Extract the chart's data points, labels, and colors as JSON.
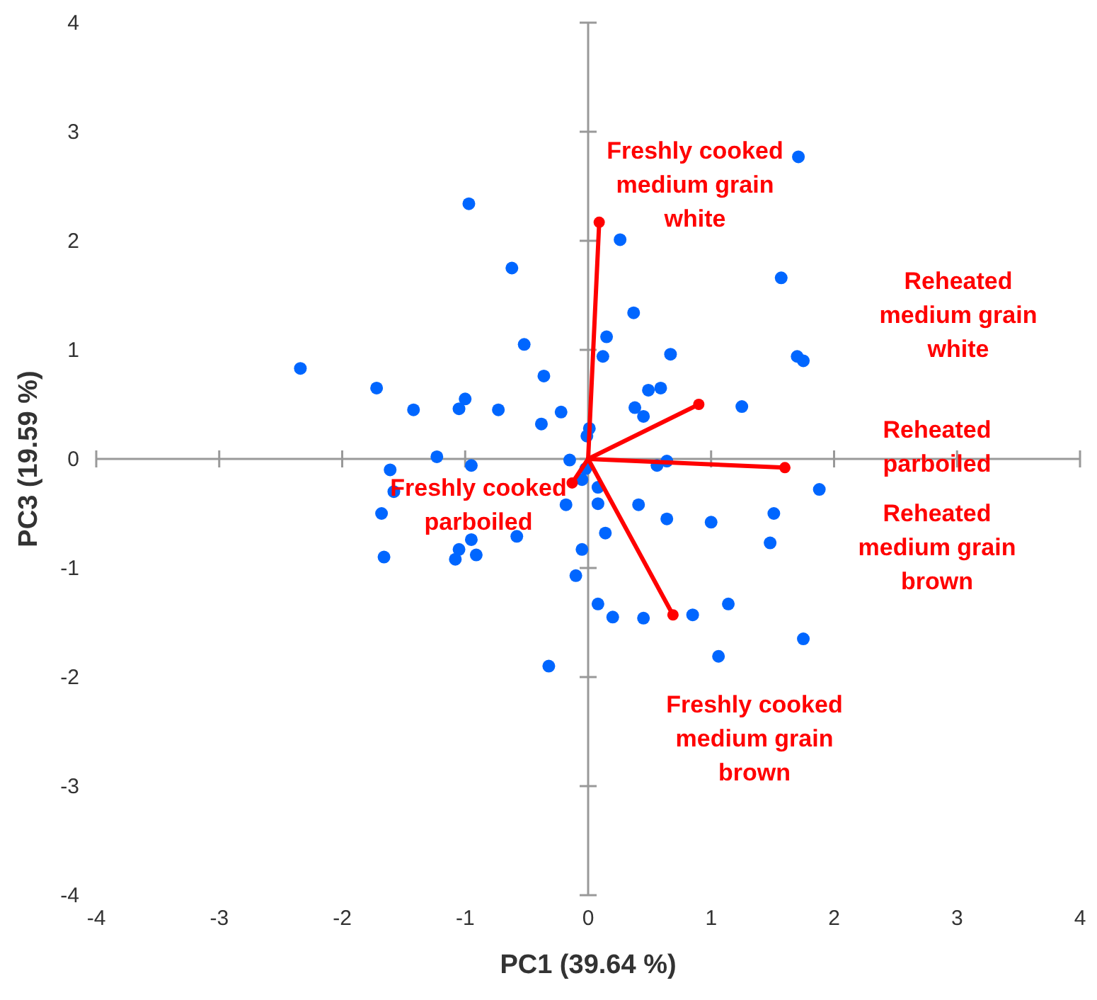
{
  "chart_data": {
    "type": "scatter",
    "xlabel": "PC1 (39.64 %)",
    "ylabel": "PC3 (19.59 %)",
    "xlim": [
      -4,
      4
    ],
    "ylim": [
      -4,
      4
    ],
    "xticks": [
      -4,
      -3,
      -2,
      -1,
      0,
      1,
      2,
      3,
      4
    ],
    "yticks": [
      -4,
      -3,
      -2,
      -1,
      0,
      1,
      2,
      3,
      4
    ],
    "marker": "circle",
    "series": [
      {
        "color": "#0066ff",
        "x": [
          -2.34,
          -1.72,
          -1.42,
          -0.97,
          -0.62,
          -0.52,
          -0.36,
          -1.0,
          -1.05,
          -0.73,
          -0.22,
          -0.38,
          0.01,
          -0.01,
          -1.23,
          -0.15,
          -1.61,
          -0.95,
          0.15,
          0.12,
          1.71,
          0.26,
          1.57,
          0.37,
          0.67,
          1.7,
          1.75,
          0.49,
          0.59,
          0.38,
          0.45,
          1.25,
          0.64,
          0.56,
          -1.58,
          -1.68,
          -1.66,
          -0.02,
          -0.05,
          -0.18,
          0.08,
          0.08,
          -0.58,
          -0.95,
          -1.05,
          -1.08,
          -0.91,
          -0.05,
          -0.1,
          0.08,
          -0.32,
          0.14,
          0.41,
          0.64,
          1.0,
          0.2,
          0.45,
          0.85,
          1.14,
          1.06,
          1.75,
          1.48,
          1.51,
          1.88
        ],
        "values": [
          0.83,
          0.65,
          0.45,
          2.34,
          1.75,
          1.05,
          0.76,
          0.55,
          0.46,
          0.45,
          0.43,
          0.32,
          0.28,
          0.21,
          0.02,
          -0.01,
          -0.1,
          -0.06,
          1.12,
          0.94,
          2.77,
          2.01,
          1.66,
          1.34,
          0.96,
          0.94,
          0.9,
          0.63,
          0.65,
          0.47,
          0.39,
          0.48,
          -0.02,
          -0.06,
          -0.3,
          -0.5,
          -0.9,
          -0.09,
          -0.19,
          -0.42,
          -0.26,
          -0.41,
          -0.71,
          -0.74,
          -0.83,
          -0.92,
          -0.88,
          -0.83,
          -1.07,
          -1.33,
          -1.9,
          -0.68,
          -0.42,
          -0.55,
          -0.58,
          -1.45,
          -1.46,
          -1.43,
          -1.33,
          -1.81,
          -1.65,
          -0.77,
          -0.5,
          -0.28
        ]
      },
      {
        "type": "line",
        "color": "#ff0000",
        "x": [
          0,
          0.09
        ],
        "values": [
          0,
          2.17
        ]
      },
      {
        "type": "line",
        "color": "#ff0000",
        "x": [
          0,
          0.9
        ],
        "values": [
          0,
          0.5
        ]
      },
      {
        "type": "line",
        "color": "#ff0000",
        "x": [
          0,
          1.6
        ],
        "values": [
          0,
          -0.08
        ]
      },
      {
        "type": "line",
        "color": "#ff0000",
        "x": [
          0,
          0.69
        ],
        "values": [
          0,
          -1.43
        ]
      },
      {
        "type": "line",
        "color": "#ff0000",
        "x": [
          0,
          -0.13
        ],
        "values": [
          0,
          -0.22
        ]
      }
    ],
    "annotations": [
      "Freshly cooked\nmedium grain\nwhite",
      "Reheated\nmedium grain\nwhite",
      "Reheated\nparboiled",
      "Reheated\nmedium grain\nbrown",
      "Freshly cooked\nparboiled",
      "Freshly cooked\nmedium grain\nbrown"
    ]
  }
}
